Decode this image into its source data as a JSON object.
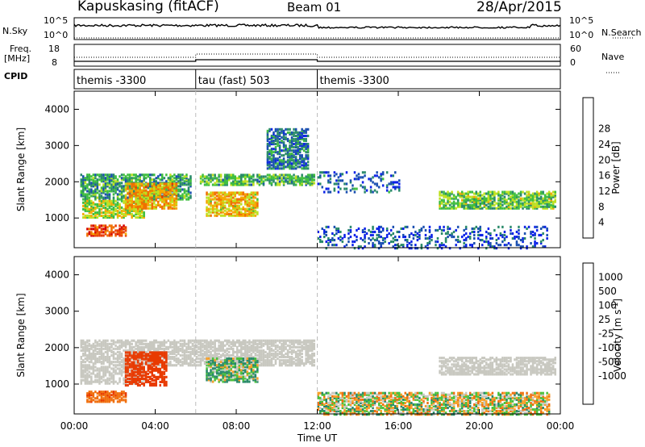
{
  "header": {
    "station": "Kapuskasing (fitACF)",
    "beam": "Beam 01",
    "date": "28/Apr/2015"
  },
  "side_labels": {
    "nsky": "N.Sky",
    "freq": "Freq.",
    "mhz": "[MHz]",
    "cpid": "CPID",
    "nsearch": "N.Search",
    "nave": "Nave"
  },
  "noise_panel": {
    "left_ticks": [
      "10^5",
      "10^0"
    ],
    "right_ticks": [
      "10^5",
      "10^0"
    ]
  },
  "freq_panel": {
    "left_ticks": [
      "18",
      "8"
    ],
    "right_ticks": [
      "60",
      "0"
    ]
  },
  "cpid_segments": [
    {
      "label": "themis -3300",
      "start_hour": 0,
      "end_hour": 6
    },
    {
      "label": "tau (fast) 503",
      "start_hour": 6,
      "end_hour": 12
    },
    {
      "label": "themis -3300",
      "start_hour": 12,
      "end_hour": 24
    }
  ],
  "colors": {
    "power_scale": [
      "#0b22e8",
      "#1a4fb0",
      "#2a8a6a",
      "#3fbe3f",
      "#bde020",
      "#f5a800",
      "#f07000",
      "#e83a00",
      "#d40000"
    ],
    "velocity_scale": [
      "#1f3fd0",
      "#1f5a9a",
      "#2a8a6a",
      "#4cc23c",
      "#c8c8c0",
      "#c8c8c0",
      "#f6a02a",
      "#f07010",
      "#e83a00",
      "#d40000"
    ],
    "ground_scatter": "#c8c8c0"
  },
  "chart_data": [
    {
      "type": "heatmap",
      "panel": "power",
      "ylabel": "Slant Range [km]",
      "ylim": [
        180,
        4500
      ],
      "yticks": [
        "1000",
        "2000",
        "3000",
        "4000"
      ],
      "xlim_hours": [
        0,
        24
      ],
      "colorbar": {
        "label": "Power [dB]",
        "ticks": [
          "4",
          "8",
          "12",
          "16",
          "20",
          "24",
          "28"
        ]
      },
      "scatter_regions": [
        {
          "t0": 0.3,
          "t1": 5.7,
          "r0": 1550,
          "r1": 2250,
          "level": 0.3
        },
        {
          "t0": 0.4,
          "t1": 3.5,
          "r0": 1050,
          "r1": 1500,
          "level": 0.5
        },
        {
          "t0": 2.5,
          "t1": 5.0,
          "r0": 1300,
          "r1": 2000,
          "level": 0.65
        },
        {
          "t0": 0.6,
          "t1": 2.6,
          "r0": 550,
          "r1": 850,
          "level": 0.85
        },
        {
          "t0": 6.5,
          "t1": 9.0,
          "r0": 1100,
          "r1": 1750,
          "level": 0.6
        },
        {
          "t0": 6.2,
          "t1": 11.8,
          "r0": 1950,
          "r1": 2250,
          "level": 0.35
        },
        {
          "t0": 9.5,
          "t1": 11.5,
          "r0": 2400,
          "r1": 3500,
          "level": 0.2
        },
        {
          "t0": 12.0,
          "t1": 16.0,
          "r0": 1750,
          "r1": 2300,
          "level": 0.15
        },
        {
          "t0": 18.0,
          "t1": 23.8,
          "r0": 1300,
          "r1": 1750,
          "level": 0.4
        },
        {
          "t0": 12.0,
          "t1": 23.5,
          "r0": 200,
          "r1": 800,
          "level": 0.1
        }
      ]
    },
    {
      "type": "heatmap",
      "panel": "velocity",
      "ylabel": "Slant Range [km]",
      "xlabel": "Time UT",
      "ylim": [
        180,
        4500
      ],
      "yticks": [
        "1000",
        "2000",
        "3000",
        "4000"
      ],
      "xticks": [
        "00:00",
        "04:00",
        "08:00",
        "12:00",
        "16:00",
        "20:00",
        "00:00"
      ],
      "xlim_hours": [
        0,
        24
      ],
      "colorbar": {
        "label": "Velocity [m s",
        "label_sup": "-1",
        "label_end": "]",
        "ticks": [
          "1000",
          "500",
          "100",
          "25",
          "-25",
          "-100",
          "-500",
          "-1000"
        ]
      },
      "scatter_regions": [
        {
          "t0": 0.3,
          "t1": 11.8,
          "r0": 1550,
          "r1": 2250,
          "kind": "ground"
        },
        {
          "t0": 0.3,
          "t1": 3.5,
          "r0": 1050,
          "r1": 1500,
          "kind": "ground"
        },
        {
          "t0": 18.0,
          "t1": 23.8,
          "r0": 1300,
          "r1": 1750,
          "kind": "ground"
        },
        {
          "t0": 0.6,
          "t1": 2.6,
          "r0": 550,
          "r1": 850,
          "v": -400
        },
        {
          "t0": 2.5,
          "t1": 4.5,
          "r0": 1000,
          "r1": 1900,
          "v": -700
        },
        {
          "t0": 6.5,
          "t1": 9.0,
          "r0": 1100,
          "r1": 1750,
          "v": 80
        },
        {
          "t0": 12.0,
          "t1": 23.5,
          "r0": 200,
          "r1": 800,
          "v": 0
        }
      ]
    }
  ]
}
